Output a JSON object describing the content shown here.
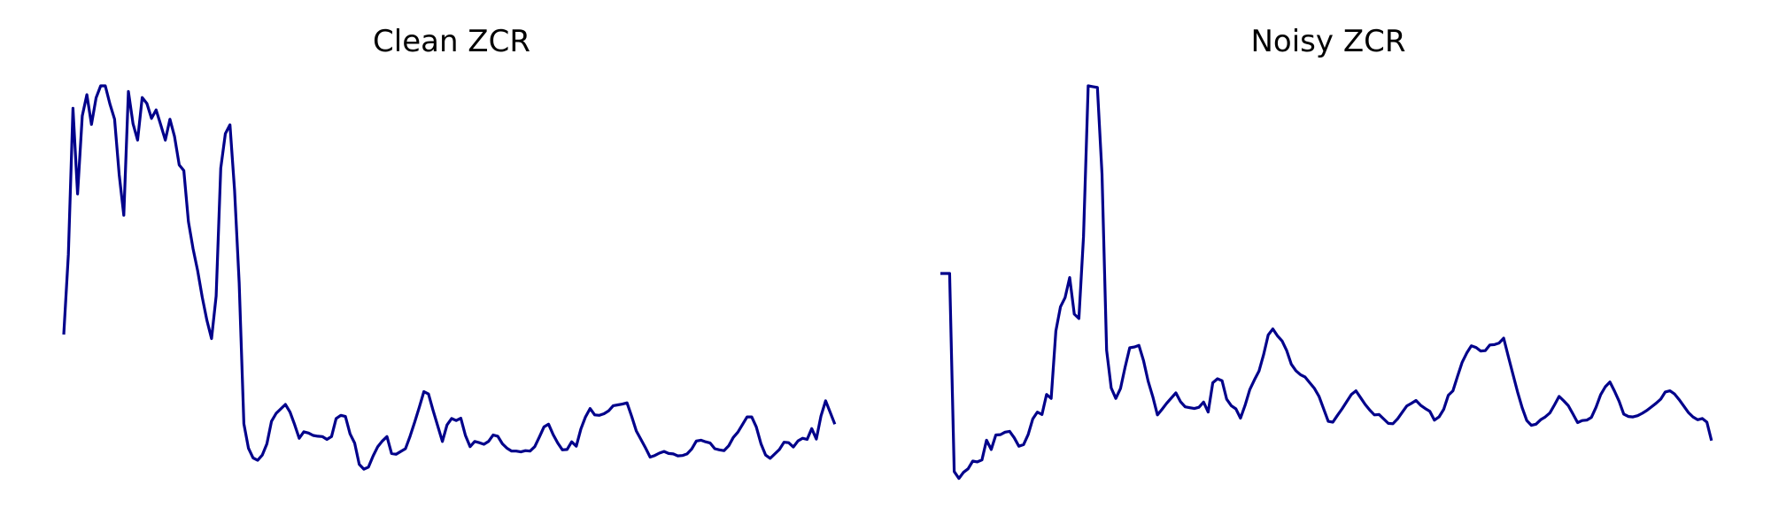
{
  "chart_data": [
    {
      "type": "line",
      "title": "Clean ZCR",
      "xlabel": "",
      "ylabel": "",
      "axes_visible": false,
      "grid": false,
      "line_color": "#00008b",
      "x_range": [
        0,
        168
      ],
      "y_range": [
        0,
        1
      ],
      "y": [
        0.381,
        0.58,
        0.944,
        0.731,
        0.925,
        0.978,
        0.904,
        0.97,
        1.0,
        1.0,
        0.955,
        0.917,
        0.779,
        0.678,
        0.986,
        0.906,
        0.865,
        0.971,
        0.956,
        0.919,
        0.94,
        0.903,
        0.865,
        0.917,
        0.874,
        0.803,
        0.789,
        0.662,
        0.595,
        0.54,
        0.474,
        0.417,
        0.371,
        0.477,
        0.795,
        0.881,
        0.903,
        0.74,
        0.51,
        0.159,
        0.098,
        0.074,
        0.068,
        0.081,
        0.109,
        0.165,
        0.185,
        0.196,
        0.207,
        0.188,
        0.157,
        0.123,
        0.139,
        0.136,
        0.13,
        0.128,
        0.127,
        0.12,
        0.127,
        0.172,
        0.18,
        0.177,
        0.134,
        0.111,
        0.058,
        0.046,
        0.051,
        0.079,
        0.102,
        0.116,
        0.127,
        0.085,
        0.083,
        0.09,
        0.097,
        0.128,
        0.163,
        0.2,
        0.239,
        0.233,
        0.192,
        0.153,
        0.115,
        0.156,
        0.172,
        0.167,
        0.173,
        0.13,
        0.102,
        0.115,
        0.112,
        0.108,
        0.115,
        0.131,
        0.128,
        0.109,
        0.098,
        0.091,
        0.091,
        0.089,
        0.092,
        0.091,
        0.102,
        0.126,
        0.151,
        0.158,
        0.132,
        0.111,
        0.094,
        0.095,
        0.114,
        0.103,
        0.146,
        0.176,
        0.197,
        0.181,
        0.18,
        0.184,
        0.191,
        0.204,
        0.206,
        0.208,
        0.211,
        0.177,
        0.141,
        0.12,
        0.099,
        0.076,
        0.08,
        0.086,
        0.09,
        0.085,
        0.084,
        0.079,
        0.08,
        0.084,
        0.096,
        0.116,
        0.118,
        0.114,
        0.111,
        0.097,
        0.094,
        0.092,
        0.104,
        0.125,
        0.138,
        0.157,
        0.176,
        0.176,
        0.151,
        0.109,
        0.081,
        0.073,
        0.084,
        0.095,
        0.113,
        0.112,
        0.101,
        0.116,
        0.123,
        0.12,
        0.147,
        0.121,
        0.178,
        0.216,
        0.187,
        0.158
      ]
    },
    {
      "type": "line",
      "title": "Noisy ZCR",
      "xlabel": "",
      "ylabel": "",
      "axes_visible": false,
      "grid": false,
      "line_color": "#00008b",
      "x_range": [
        0,
        168
      ],
      "y_range": [
        0,
        1
      ],
      "y": [
        0.533,
        0.533,
        0.533,
        0.04,
        0.023,
        0.038,
        0.047,
        0.066,
        0.064,
        0.069,
        0.118,
        0.095,
        0.131,
        0.132,
        0.138,
        0.14,
        0.124,
        0.103,
        0.107,
        0.132,
        0.171,
        0.188,
        0.182,
        0.232,
        0.222,
        0.39,
        0.45,
        0.473,
        0.523,
        0.432,
        0.421,
        0.624,
        1.0,
        0.998,
        0.996,
        0.781,
        0.342,
        0.248,
        0.222,
        0.247,
        0.3,
        0.348,
        0.35,
        0.354,
        0.316,
        0.265,
        0.226,
        0.181,
        0.195,
        0.21,
        0.223,
        0.236,
        0.214,
        0.201,
        0.199,
        0.197,
        0.2,
        0.213,
        0.188,
        0.261,
        0.271,
        0.266,
        0.22,
        0.204,
        0.196,
        0.173,
        0.205,
        0.244,
        0.268,
        0.29,
        0.331,
        0.38,
        0.395,
        0.378,
        0.365,
        0.341,
        0.307,
        0.291,
        0.281,
        0.275,
        0.261,
        0.247,
        0.227,
        0.196,
        0.165,
        0.163,
        0.18,
        0.196,
        0.214,
        0.232,
        0.241,
        0.224,
        0.207,
        0.193,
        0.181,
        0.182,
        0.171,
        0.16,
        0.159,
        0.171,
        0.187,
        0.203,
        0.21,
        0.217,
        0.205,
        0.197,
        0.19,
        0.168,
        0.176,
        0.195,
        0.23,
        0.241,
        0.277,
        0.312,
        0.335,
        0.353,
        0.349,
        0.34,
        0.341,
        0.355,
        0.356,
        0.36,
        0.372,
        0.326,
        0.282,
        0.238,
        0.199,
        0.167,
        0.155,
        0.158,
        0.169,
        0.176,
        0.186,
        0.206,
        0.227,
        0.216,
        0.204,
        0.183,
        0.162,
        0.167,
        0.168,
        0.175,
        0.2,
        0.231,
        0.251,
        0.263,
        0.24,
        0.215,
        0.183,
        0.177,
        0.176,
        0.179,
        0.185,
        0.192,
        0.201,
        0.21,
        0.22,
        0.238,
        0.241,
        0.233,
        0.219,
        0.203,
        0.187,
        0.176,
        0.169,
        0.172,
        0.163,
        0.117
      ]
    }
  ]
}
